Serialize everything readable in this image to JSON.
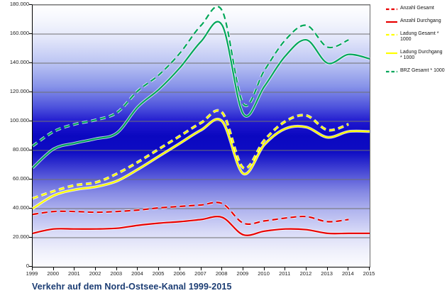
{
  "title": "Verkehr auf dem Nord-Ostsee-Kanal 1999-2015",
  "colors": {
    "red": "#e80000",
    "yellow": "#ffff00",
    "green": "#00a65a",
    "gridline": "#707070",
    "title_text": "#1b3c73"
  },
  "legend": [
    {
      "label": "Anzahl Gesamt",
      "color": "#e80000",
      "style": "dashed"
    },
    {
      "label": "Anzahl Durchgang",
      "color": "#e80000",
      "style": "solid"
    },
    {
      "label": "Ladung Gesamt * 1000",
      "color": "#ffff00",
      "style": "dashed"
    },
    {
      "label": "Ladung Durchgang * 1000",
      "color": "#ffff00",
      "style": "solid"
    },
    {
      "label": "BRZ Gesamt * 1000",
      "color": "#00a65a",
      "style": "dashed"
    }
  ],
  "chart_data": {
    "type": "line",
    "title": "Verkehr auf dem Nord-Ostsee-Kanal 1999-2015",
    "xlabel": "",
    "ylabel": "",
    "x": [
      1999,
      2000,
      2001,
      2002,
      2003,
      2004,
      2005,
      2006,
      2007,
      2008,
      2009,
      2010,
      2011,
      2012,
      2013,
      2014,
      2015
    ],
    "x_tick_labels": [
      "1999",
      "2000",
      "2001",
      "2002",
      "2003",
      "2004",
      "2005",
      "2006",
      "2007",
      "2008",
      "2009",
      "2010",
      "2011",
      "2012",
      "2013",
      "2014",
      "2015"
    ],
    "ylim": [
      0,
      180000
    ],
    "y_tick_interval": 20000,
    "y_tick_labels": [
      "0",
      "20.000",
      "40.000",
      "60.000",
      "80.000",
      "100.000",
      "120.000",
      "140.000",
      "160.000",
      "180.000"
    ],
    "grid": "horizontal",
    "legend_position": "right",
    "plot_background": "vertical gradient white - deep blue - white",
    "series": [
      {
        "name": "Anzahl Gesamt",
        "color": "#e80000",
        "dash": true,
        "values": [
          36000,
          38000,
          38000,
          37500,
          38000,
          39000,
          40500,
          41500,
          42500,
          43500,
          30000,
          31500,
          33500,
          34500,
          31000,
          32500,
          null
        ]
      },
      {
        "name": "Anzahl Durchgang",
        "color": "#e80000",
        "dash": false,
        "values": [
          23000,
          26000,
          26000,
          26000,
          26500,
          28500,
          30000,
          31000,
          32500,
          34000,
          22000,
          24500,
          26000,
          25500,
          23000,
          23000,
          23000
        ]
      },
      {
        "name": "Ladung Gesamt * 1000",
        "color": "#ffff00",
        "dash": true,
        "values": [
          47000,
          52000,
          56000,
          58000,
          64000,
          72000,
          81000,
          90000,
          99000,
          106000,
          68000,
          87000,
          100000,
          104000,
          94000,
          98000,
          null
        ]
      },
      {
        "name": "Ladung Durchgang * 1000",
        "color": "#ffff00",
        "dash": false,
        "values": [
          40000,
          49000,
          53000,
          55000,
          59000,
          67000,
          76000,
          85000,
          94000,
          100000,
          64000,
          84000,
          95000,
          96000,
          89000,
          93000,
          93000
        ]
      },
      {
        "name": "BRZ Gesamt * 1000",
        "color": "#00a65a",
        "dash": true,
        "values": [
          83000,
          93000,
          98000,
          101000,
          106000,
          121000,
          132000,
          147000,
          166000,
          176000,
          112000,
          135000,
          156000,
          166000,
          151000,
          156000,
          null
        ]
      },
      {
        "name": "(unlabeled solid green line)",
        "color": "#00a65a",
        "dash": false,
        "values": [
          68000,
          81000,
          85000,
          88000,
          92000,
          110000,
          122000,
          137000,
          155000,
          166000,
          105000,
          124000,
          145000,
          156000,
          140000,
          146000,
          143000
        ]
      }
    ]
  }
}
